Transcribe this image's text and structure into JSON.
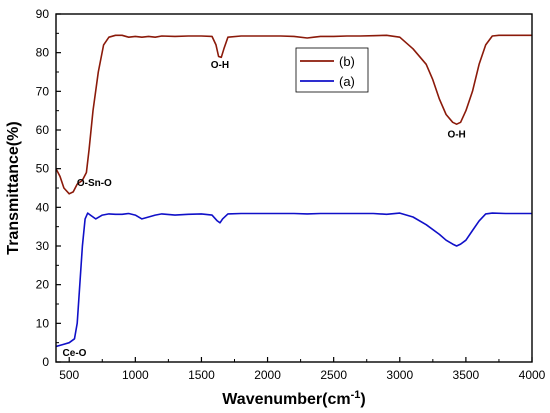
{
  "chart_data": {
    "type": "line",
    "xlabel": "Wavenumber(cm",
    "xlabel_sup": "-1",
    "xlabel_suffix": ")",
    "ylabel": "Transmittance(%)",
    "xlim": [
      400,
      4000
    ],
    "ylim": [
      0,
      90
    ],
    "x_ticks": [
      500,
      1000,
      1500,
      2000,
      2500,
      3000,
      3500,
      4000
    ],
    "y_ticks": [
      0,
      10,
      20,
      30,
      40,
      50,
      60,
      70,
      80,
      90
    ],
    "grid": false,
    "legend_position": "top-right",
    "series": [
      {
        "name": "(b)",
        "color": "#8B1A0A",
        "x": [
          400,
          430,
          460,
          500,
          530,
          560,
          600,
          630,
          650,
          680,
          720,
          760,
          800,
          850,
          900,
          950,
          1000,
          1050,
          1100,
          1150,
          1200,
          1300,
          1400,
          1500,
          1580,
          1610,
          1630,
          1650,
          1670,
          1700,
          1800,
          1900,
          2000,
          2100,
          2200,
          2300,
          2350,
          2400,
          2500,
          2600,
          2700,
          2800,
          2900,
          3000,
          3100,
          3200,
          3250,
          3300,
          3350,
          3400,
          3430,
          3460,
          3500,
          3550,
          3600,
          3650,
          3700,
          3750,
          3800,
          3900,
          4000
        ],
        "y": [
          50,
          48,
          45,
          43.5,
          44,
          46,
          47,
          49,
          55,
          65,
          75,
          82,
          84,
          84.5,
          84.5,
          84,
          84.2,
          84,
          84.2,
          84,
          84.3,
          84.2,
          84.3,
          84.3,
          84.2,
          82,
          79,
          78.8,
          81,
          84,
          84.3,
          84.3,
          84.3,
          84.3,
          84.2,
          83.8,
          84,
          84.2,
          84.2,
          84.3,
          84.3,
          84.4,
          84.5,
          84,
          81,
          77,
          73,
          68,
          64,
          62,
          61.5,
          62,
          65,
          70,
          77,
          82,
          84.3,
          84.5,
          84.5,
          84.5,
          84.5
        ]
      },
      {
        "name": "(a)",
        "color": "#1010C8",
        "x": [
          400,
          450,
          500,
          540,
          560,
          580,
          600,
          620,
          640,
          660,
          700,
          750,
          800,
          850,
          900,
          950,
          1000,
          1050,
          1100,
          1150,
          1200,
          1300,
          1400,
          1500,
          1580,
          1620,
          1640,
          1660,
          1700,
          1800,
          1900,
          2000,
          2100,
          2200,
          2300,
          2400,
          2500,
          2600,
          2700,
          2800,
          2900,
          3000,
          3100,
          3200,
          3300,
          3350,
          3400,
          3430,
          3460,
          3500,
          3550,
          3600,
          3650,
          3700,
          3800,
          3900,
          4000
        ],
        "y": [
          4,
          4.5,
          5,
          6,
          10,
          20,
          30,
          37,
          38.5,
          38,
          37,
          38,
          38.3,
          38.2,
          38.2,
          38.4,
          38,
          37,
          37.5,
          38,
          38.3,
          38,
          38.2,
          38.3,
          38,
          36.5,
          36,
          37,
          38.3,
          38.4,
          38.4,
          38.4,
          38.4,
          38.4,
          38.3,
          38.4,
          38.4,
          38.4,
          38.4,
          38.4,
          38.2,
          38.5,
          37.5,
          35.5,
          33,
          31.5,
          30.5,
          30,
          30.5,
          31.5,
          34,
          36.5,
          38.3,
          38.5,
          38.4,
          38.4,
          38.4
        ]
      }
    ],
    "annotations": [
      {
        "text": "O-Sn-O",
        "x": 690,
        "y": 45.5
      },
      {
        "text": "O-H",
        "x": 1640,
        "y": 76
      },
      {
        "text": "O-H",
        "x": 3430,
        "y": 58
      },
      {
        "text": "Ce-O",
        "x": 540,
        "y": 1.5
      }
    ],
    "legend": [
      {
        "label": "(b)",
        "color": "#8B1A0A"
      },
      {
        "label": "(a)",
        "color": "#1010C8"
      }
    ]
  }
}
